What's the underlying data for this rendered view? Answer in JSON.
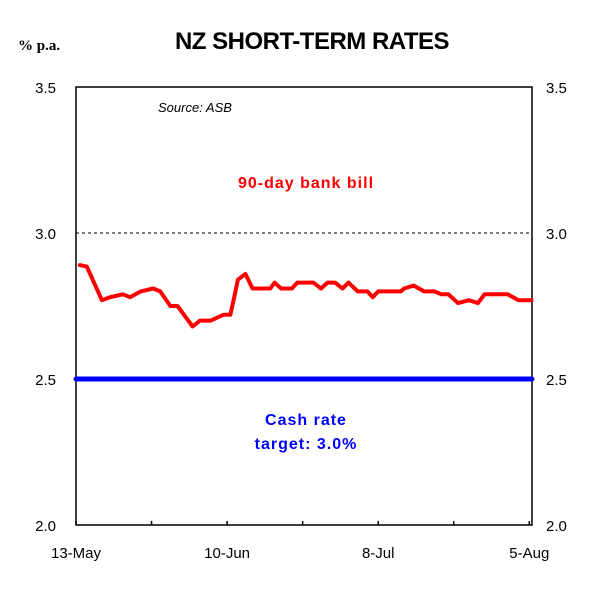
{
  "chart_data": {
    "type": "line",
    "title": "NZ SHORT-TERM RATES",
    "ylabel": "% p.a.",
    "source": "Source: ASB",
    "ylim": [
      2.0,
      3.5
    ],
    "yticks": [
      "2.0",
      "2.5",
      "3.0",
      "3.5"
    ],
    "xlim": [
      0,
      84.5
    ],
    "xticks": [
      {
        "day": 0,
        "label": "13-May"
      },
      {
        "day": 28,
        "label": "10-Jun"
      },
      {
        "day": 56,
        "label": "8-Jul"
      },
      {
        "day": 84,
        "label": "5-Aug"
      }
    ],
    "minor_xticks": [
      14,
      42,
      70
    ],
    "reference_line": {
      "value": 3.0,
      "style": "dashed"
    },
    "series": [
      {
        "name": "90-day bank bill",
        "color": "#ff0000",
        "x": [
          0.7,
          2,
          4.8,
          6.3,
          8.7,
          10,
          12,
          14.3,
          15.6,
          17.5,
          18.8,
          21.6,
          23,
          25,
          27.3,
          28.6,
          29.2,
          30,
          31.4,
          32.7,
          36,
          36.8,
          38,
          40,
          41,
          44,
          45.4,
          46.6,
          48,
          49.4,
          50.5,
          52.2,
          54,
          55,
          56,
          60.2,
          60.8,
          62.6,
          64.5,
          66.4,
          67.7,
          69,
          70.8,
          72.8,
          74.5,
          75.7,
          80,
          82,
          84.4
        ],
        "values": [
          2.89,
          2.885,
          2.77,
          2.78,
          2.79,
          2.78,
          2.8,
          2.81,
          2.8,
          2.75,
          2.75,
          2.68,
          2.7,
          2.7,
          2.72,
          2.72,
          2.77,
          2.84,
          2.86,
          2.81,
          2.81,
          2.83,
          2.81,
          2.81,
          2.83,
          2.83,
          2.81,
          2.83,
          2.83,
          2.81,
          2.83,
          2.8,
          2.8,
          2.78,
          2.8,
          2.8,
          2.81,
          2.82,
          2.8,
          2.8,
          2.79,
          2.79,
          2.76,
          2.77,
          2.76,
          2.79,
          2.79,
          2.77,
          2.77
        ]
      },
      {
        "name": "Cash rate",
        "label_line2": "target: 3.0%",
        "color": "#0000ff",
        "x": [
          0,
          84.5
        ],
        "values": [
          2.5,
          2.5
        ]
      }
    ]
  }
}
